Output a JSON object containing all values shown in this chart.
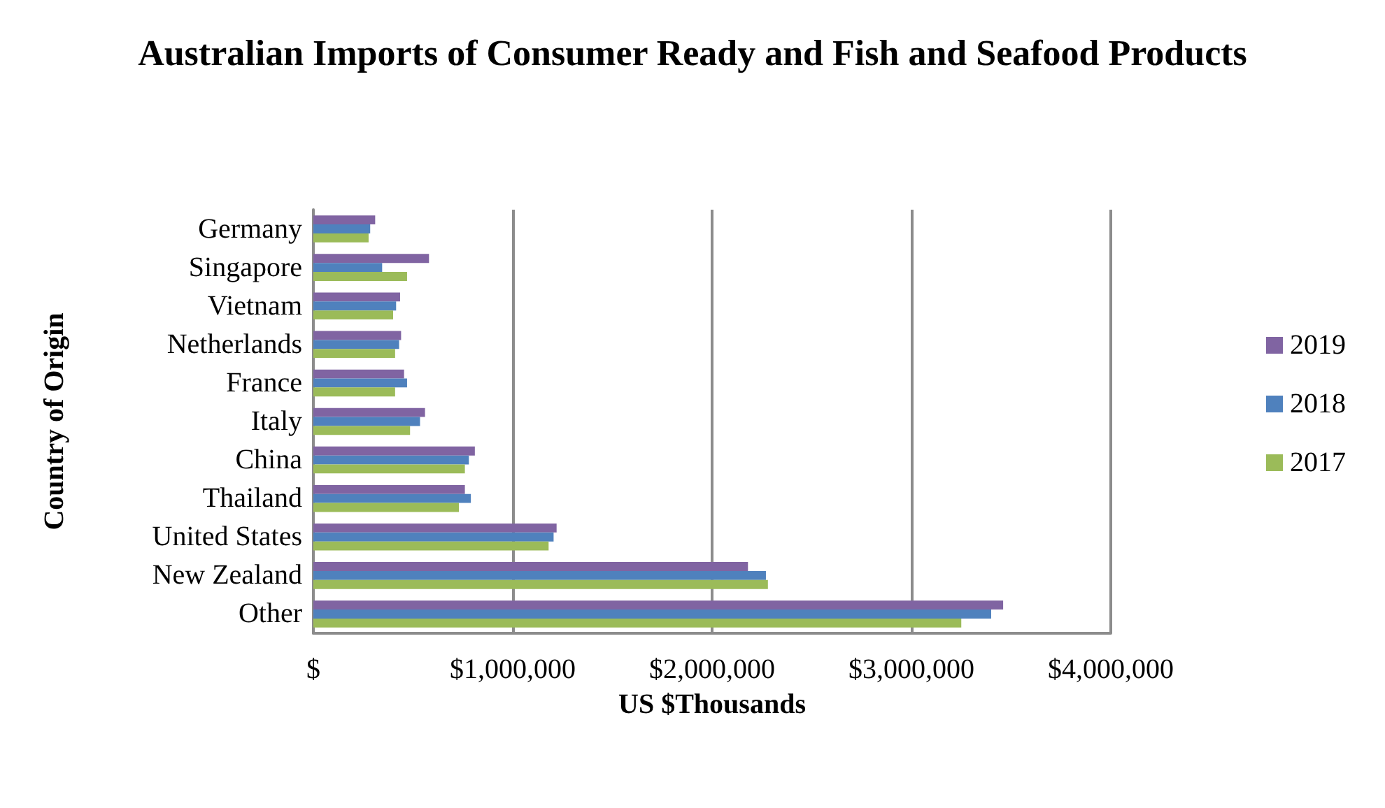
{
  "chart_data": {
    "type": "bar",
    "orientation": "horizontal",
    "title": "Australian Imports of Consumer Ready and Fish and Seafood Products",
    "xlabel": "US $Thousands",
    "ylabel": "Country of Origin",
    "categories": [
      "Germany",
      "Singapore",
      "Vietnam",
      "Netherlands",
      "France",
      "Italy",
      "China",
      "Thailand",
      "United States",
      "New Zealand",
      "Other"
    ],
    "series": [
      {
        "name": "2019",
        "color": "#8064a2",
        "values": [
          310000,
          580000,
          435000,
          440000,
          455000,
          560000,
          810000,
          760000,
          1220000,
          2180000,
          3460000
        ]
      },
      {
        "name": "2018",
        "color": "#4f81bd",
        "values": [
          285000,
          345000,
          415000,
          430000,
          470000,
          535000,
          780000,
          790000,
          1205000,
          2270000,
          3400000
        ]
      },
      {
        "name": "2017",
        "color": "#9bbb59",
        "values": [
          277000,
          470000,
          400000,
          410000,
          410000,
          485000,
          760000,
          730000,
          1180000,
          2280000,
          3250000
        ]
      }
    ],
    "xlim": [
      0,
      4000000
    ],
    "xticks": [
      {
        "value": 0,
        "label": "$"
      },
      {
        "value": 1000000,
        "label": "$1,000,000"
      },
      {
        "value": 2000000,
        "label": "$2,000,000"
      },
      {
        "value": 3000000,
        "label": "$3,000,000"
      },
      {
        "value": 4000000,
        "label": "$4,000,000"
      }
    ],
    "grid": "x",
    "legend": "right"
  }
}
